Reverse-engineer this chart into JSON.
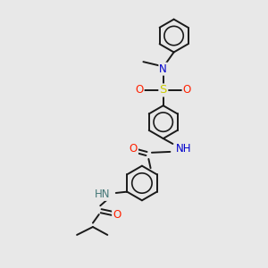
{
  "bg_color": "#e8e8e8",
  "bond_color": "#1a1a1a",
  "atom_colors": {
    "N": "#0000cc",
    "O": "#ff2000",
    "S": "#cccc00",
    "H_N": "#447777",
    "C": "#1a1a1a"
  },
  "line_width": 1.4,
  "font_size": 8.5,
  "fig_size": [
    3.0,
    3.0
  ],
  "dpi": 100
}
